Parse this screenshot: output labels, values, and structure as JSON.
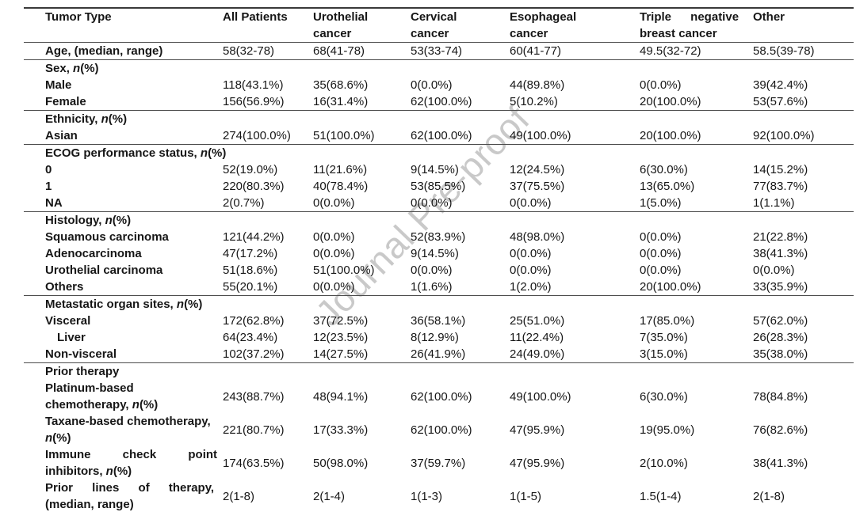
{
  "watermark": "Journal Pre-proof",
  "colors": {
    "watermark": "#c9c9c9",
    "rule": "#4c4c4c",
    "text": "#161616"
  },
  "table": {
    "columns": [
      "Tumor Type",
      "All Patients",
      "Urothelial\ncancer",
      "Cervical\ncancer",
      "Esophageal\ncancer",
      "Triple negative\nbreast cancer",
      "Other"
    ],
    "rows": [
      {
        "label": "Age, (median, range)",
        "values": [
          "58(32-78)",
          "68(41-78)",
          "53(33-74)",
          "60(41-77)",
          "49.5(32-72)",
          "58.5(39-78)"
        ]
      },
      {
        "label": "Sex, n(%)",
        "values": [
          "",
          "",
          "",
          "",
          "",
          ""
        ]
      },
      {
        "label": "Male",
        "values": [
          "118(43.1%)",
          "35(68.6%)",
          "0(0.0%)",
          "44(89.8%)",
          "0(0.0%)",
          "39(42.4%)"
        ]
      },
      {
        "label": "Female",
        "values": [
          "156(56.9%)",
          "16(31.4%)",
          "62(100.0%)",
          "5(10.2%)",
          "20(100.0%)",
          "53(57.6%)"
        ]
      },
      {
        "label": "Ethnicity, n(%)",
        "values": [
          "",
          "",
          "",
          "",
          "",
          ""
        ]
      },
      {
        "label": "Asian",
        "values": [
          "274(100.0%)",
          "51(100.0%)",
          "62(100.0%)",
          "49(100.0%)",
          "20(100.0%)",
          "92(100.0%)"
        ]
      },
      {
        "label": "ECOG performance status, n(%)",
        "values": [
          "",
          "",
          "",
          "",
          "",
          ""
        ]
      },
      {
        "label": "0",
        "values": [
          "52(19.0%)",
          "11(21.6%)",
          "9(14.5%)",
          "12(24.5%)",
          "6(30.0%)",
          "14(15.2%)"
        ]
      },
      {
        "label": "1",
        "values": [
          "220(80.3%)",
          "40(78.4%)",
          "53(85.5%)",
          "37(75.5%)",
          "13(65.0%)",
          "77(83.7%)"
        ]
      },
      {
        "label": "NA",
        "values": [
          "2(0.7%)",
          "0(0.0%)",
          "0(0.0%)",
          "0(0.0%)",
          "1(5.0%)",
          "1(1.1%)"
        ]
      },
      {
        "label": "Histology, n(%)",
        "values": [
          "",
          "",
          "",
          "",
          "",
          ""
        ]
      },
      {
        "label": "Squamous carcinoma",
        "values": [
          "121(44.2%)",
          "0(0.0%)",
          "52(83.9%)",
          "48(98.0%)",
          "0(0.0%)",
          "21(22.8%)"
        ]
      },
      {
        "label": "Adenocarcinoma",
        "values": [
          "47(17.2%)",
          "0(0.0%)",
          "9(14.5%)",
          "0(0.0%)",
          "0(0.0%)",
          "38(41.3%)"
        ]
      },
      {
        "label": "Urothelial carcinoma",
        "values": [
          "51(18.6%)",
          "51(100.0%)",
          "0(0.0%)",
          "0(0.0%)",
          "0(0.0%)",
          "0(0.0%)"
        ]
      },
      {
        "label": "Others",
        "values": [
          "55(20.1%)",
          "0(0.0%)",
          "1(1.6%)",
          "1(2.0%)",
          "20(100.0%)",
          "33(35.9%)"
        ]
      },
      {
        "label": "Metastatic organ sites, n(%)",
        "values": [
          "",
          "",
          "",
          "",
          "",
          ""
        ]
      },
      {
        "label": "Visceral",
        "values": [
          "172(62.8%)",
          "37(72.5%)",
          "36(58.1%)",
          "25(51.0%)",
          "17(85.0%)",
          "57(62.0%)"
        ]
      },
      {
        "label": "Liver",
        "values": [
          "64(23.4%)",
          "12(23.5%)",
          "8(12.9%)",
          "11(22.4%)",
          "7(35.0%)",
          "26(28.3%)"
        ]
      },
      {
        "label": "Non-visceral",
        "values": [
          "102(37.2%)",
          "14(27.5%)",
          "26(41.9%)",
          "24(49.0%)",
          "3(15.0%)",
          "35(38.0%)"
        ]
      },
      {
        "label": "Prior therapy",
        "values": [
          "",
          "",
          "",
          "",
          "",
          ""
        ]
      },
      {
        "label": "Platinum-based\nchemotherapy, n(%)",
        "values": [
          "243(88.7%)",
          "48(94.1%)",
          "62(100.0%)",
          "49(100.0%)",
          "6(30.0%)",
          "78(84.8%)"
        ]
      },
      {
        "label": "Taxane-based chemotherapy,\nn(%)",
        "values": [
          "221(80.7%)",
          "17(33.3%)",
          "62(100.0%)",
          "47(95.9%)",
          "19(95.0%)",
          "76(82.6%)"
        ]
      },
      {
        "label": "Immune check point\ninhibitors, n(%)",
        "values": [
          "174(63.5%)",
          "50(98.0%)",
          "37(59.7%)",
          "47(95.9%)",
          "2(10.0%)",
          "38(41.3%)"
        ]
      },
      {
        "label": "Prior lines of therapy,\n(median, range)",
        "values": [
          "2(1-8)",
          "2(1-4)",
          "1(1-3)",
          "1(1-5)",
          "1.5(1-4)",
          "2(1-8)"
        ]
      }
    ]
  }
}
